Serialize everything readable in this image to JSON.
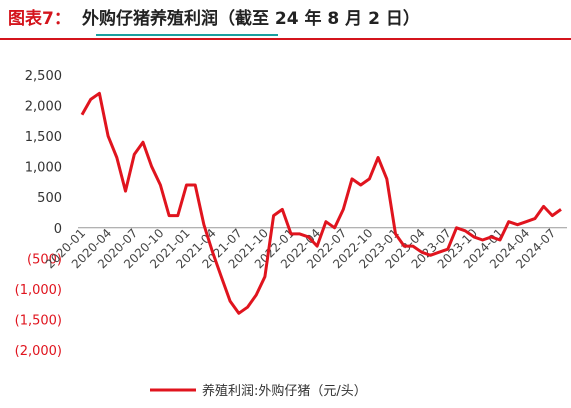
{
  "chart_data": {
    "type": "line",
    "label": "图表7：",
    "title": "外购仔猪养殖利润（截至 24 年 8 月 2 日）",
    "categories": [
      "2020-01",
      null,
      null,
      "2020-04",
      null,
      null,
      "2020-07",
      null,
      null,
      "2020-10",
      null,
      null,
      "2021-01",
      null,
      null,
      "2021-04",
      null,
      null,
      "2021-07",
      null,
      null,
      "2021-10",
      null,
      null,
      "2022-01",
      null,
      null,
      "2022-04",
      null,
      null,
      "2022-07",
      null,
      null,
      "2022-10",
      null,
      null,
      "2023-01",
      null,
      null,
      "2023-04",
      null,
      null,
      "2023-07",
      null,
      null,
      "2023-10",
      null,
      null,
      "2024-01",
      null,
      null,
      "2024-04",
      null,
      null,
      "2024-07",
      null
    ],
    "series": [
      {
        "name": "养殖利润:外购仔猪（元/头）",
        "color": "#e0141e",
        "values": [
          1850,
          2100,
          2200,
          1500,
          1150,
          600,
          1200,
          1400,
          1000,
          700,
          200,
          200,
          700,
          700,
          50,
          -400,
          -800,
          -1200,
          -1400,
          -1300,
          -1100,
          -800,
          200,
          300,
          -100,
          -100,
          -150,
          -300,
          100,
          0,
          300,
          800,
          700,
          800,
          1150,
          800,
          -100,
          -300,
          -300,
          -400,
          -450,
          -400,
          -350,
          0,
          -50,
          -150,
          -200,
          -150,
          -200,
          100,
          50,
          100,
          150,
          350,
          200,
          300
        ]
      }
    ],
    "ylim": [
      -2000,
      2500
    ],
    "yticks": [
      {
        "value": 2500,
        "label": "2,500"
      },
      {
        "value": 2000,
        "label": "2,000"
      },
      {
        "value": 1500,
        "label": "1,500"
      },
      {
        "value": 1000,
        "label": "1,000"
      },
      500,
      0,
      {
        "value": -500,
        "label": "(500)"
      },
      {
        "value": -1000,
        "label": "(1,000)"
      },
      {
        "value": -1500,
        "label": "(1,500)"
      },
      {
        "value": -2000,
        "label": "(2,000)"
      }
    ]
  }
}
